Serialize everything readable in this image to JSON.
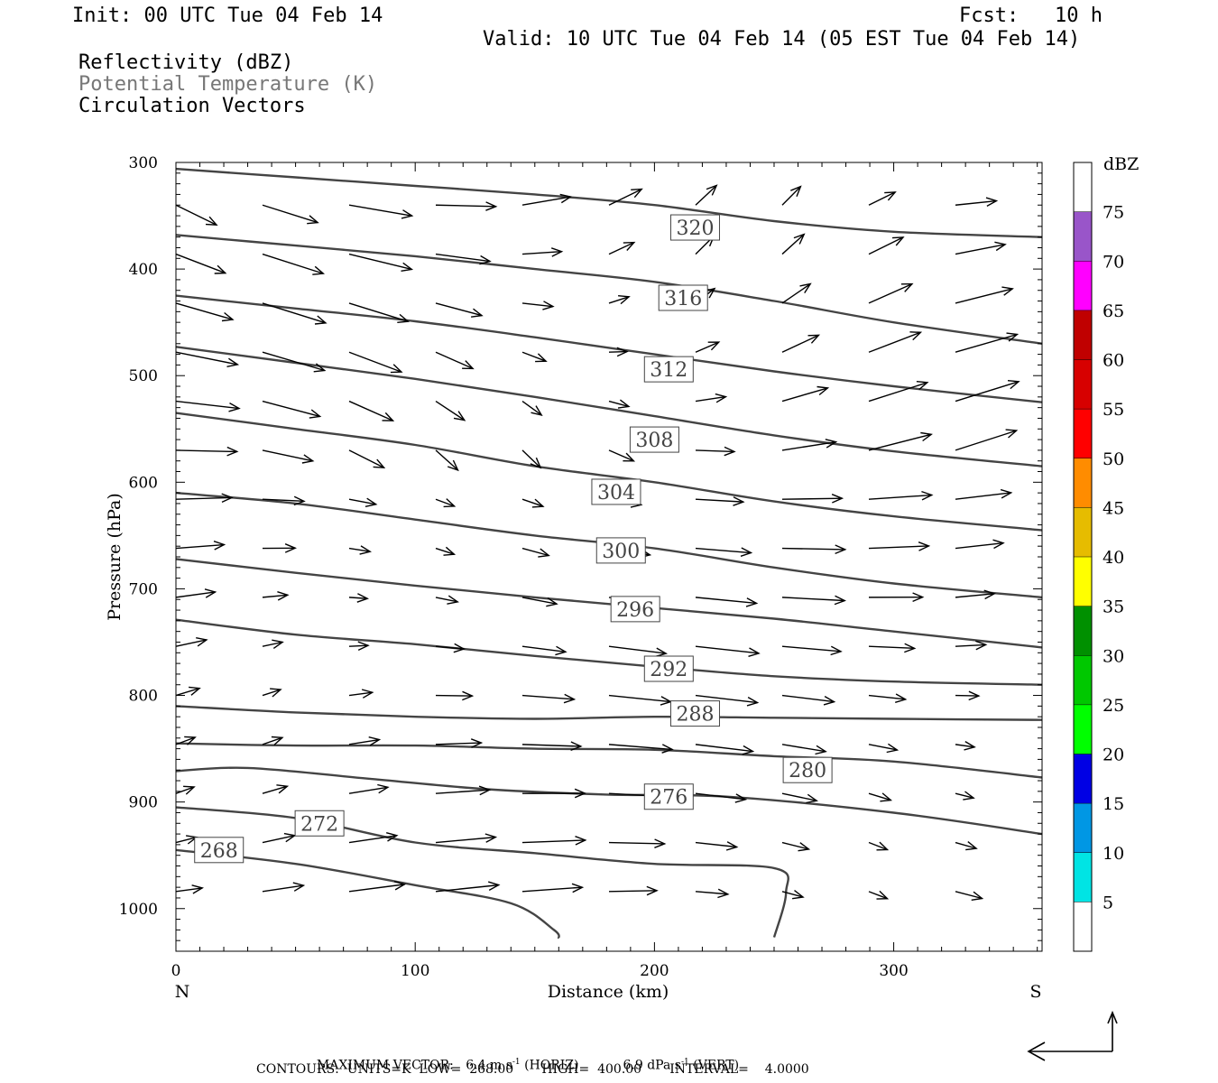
{
  "header": {
    "init": "Init: 00 UTC Tue 04 Feb 14",
    "fcst": "Fcst:   10 h",
    "valid": "Valid: 10 UTC Tue 04 Feb 14 (05 EST Tue 04 Feb 14)",
    "field1": "Reflectivity (dBZ)",
    "field2": "Potential Temperature (K)",
    "field3": "Circulation Vectors"
  },
  "colors": {
    "contour": "#444444",
    "axis": "#000000",
    "field2_text": "#777777"
  },
  "footer": {
    "vector_label": "MAXIMUM VECTOR:",
    "horiz_value": "6.4 m s",
    "horiz_exp": "-1",
    "horiz_tag": "(HORIZ)",
    "vert_value": "6.9 dPa s",
    "vert_exp": "-1",
    "vert_tag": "(VERT)",
    "contours_line": "CONTOURS:  UNITS=K  LOW=  268.00       HIGH=  400.00       INTERVAL=    4.0000"
  },
  "chart_data": {
    "type": "contour",
    "xlabel": "Distance (km)",
    "ylabel": "Pressure (hPa)",
    "xlim": [
      0,
      362
    ],
    "ylim": [
      1040,
      300
    ],
    "x_ticks": [
      0,
      100,
      200,
      300
    ],
    "y_ticks": [
      300,
      400,
      500,
      600,
      700,
      800,
      900,
      1000
    ],
    "x_end_labels": {
      "left": "N",
      "right": "S"
    },
    "colorbar": {
      "label": "dBZ",
      "levels": [
        5,
        10,
        15,
        20,
        25,
        30,
        35,
        40,
        45,
        50,
        55,
        60,
        65,
        70,
        75
      ],
      "colors": [
        "#ffffff",
        "#00e4e4",
        "#0097e4",
        "#0000e4",
        "#00ff00",
        "#00c800",
        "#009000",
        "#ffff00",
        "#e6bc00",
        "#ff8c00",
        "#ff0000",
        "#d70000",
        "#c00000",
        "#ff00ff",
        "#9955c9",
        "#ffffff"
      ]
    },
    "isentropes": [
      {
        "label": "320",
        "label_at": [
          217,
          361
        ],
        "points": [
          [
            0,
            306
          ],
          [
            50,
            314
          ],
          [
            100,
            322
          ],
          [
            150,
            330
          ],
          [
            200,
            340
          ],
          [
            250,
            355
          ],
          [
            300,
            365
          ],
          [
            362,
            370
          ]
        ]
      },
      {
        "label": "316",
        "label_at": [
          212,
          427
        ],
        "points": [
          [
            0,
            368
          ],
          [
            50,
            378
          ],
          [
            100,
            388
          ],
          [
            150,
            400
          ],
          [
            200,
            412
          ],
          [
            250,
            430
          ],
          [
            300,
            450
          ],
          [
            362,
            470
          ]
        ]
      },
      {
        "label": "312",
        "label_at": [
          206,
          494
        ],
        "points": [
          [
            0,
            425
          ],
          [
            50,
            437
          ],
          [
            100,
            449
          ],
          [
            150,
            464
          ],
          [
            200,
            480
          ],
          [
            250,
            496
          ],
          [
            300,
            510
          ],
          [
            362,
            525
          ]
        ]
      },
      {
        "label": "308",
        "label_at": [
          200,
          560
        ],
        "points": [
          [
            0,
            473
          ],
          [
            50,
            488
          ],
          [
            100,
            503
          ],
          [
            150,
            520
          ],
          [
            200,
            538
          ],
          [
            250,
            556
          ],
          [
            300,
            571
          ],
          [
            362,
            585
          ]
        ]
      },
      {
        "label": "304",
        "label_at": [
          184,
          609
        ],
        "points": [
          [
            0,
            535
          ],
          [
            50,
            550
          ],
          [
            100,
            565
          ],
          [
            150,
            585
          ],
          [
            200,
            600
          ],
          [
            250,
            618
          ],
          [
            300,
            632
          ],
          [
            362,
            645
          ]
        ]
      },
      {
        "label": "300",
        "label_at": [
          186,
          664
        ],
        "points": [
          [
            0,
            610
          ],
          [
            50,
            620
          ],
          [
            100,
            635
          ],
          [
            150,
            650
          ],
          [
            200,
            662
          ],
          [
            250,
            680
          ],
          [
            300,
            695
          ],
          [
            362,
            708
          ]
        ]
      },
      {
        "label": "296",
        "label_at": [
          192,
          719
        ],
        "points": [
          [
            0,
            672
          ],
          [
            50,
            685
          ],
          [
            100,
            697
          ],
          [
            150,
            708
          ],
          [
            200,
            718
          ],
          [
            250,
            728
          ],
          [
            300,
            740
          ],
          [
            362,
            755
          ]
        ]
      },
      {
        "label": "292",
        "label_at": [
          206,
          775
        ],
        "points": [
          [
            0,
            729
          ],
          [
            50,
            743
          ],
          [
            100,
            752
          ],
          [
            150,
            763
          ],
          [
            200,
            773
          ],
          [
            250,
            782
          ],
          [
            300,
            787
          ],
          [
            362,
            790
          ]
        ]
      },
      {
        "label": "288",
        "label_at": [
          217,
          817
        ],
        "points": [
          [
            0,
            810
          ],
          [
            50,
            816
          ],
          [
            100,
            820
          ],
          [
            150,
            822
          ],
          [
            200,
            820
          ],
          [
            250,
            821
          ],
          [
            300,
            822
          ],
          [
            362,
            823
          ]
        ]
      },
      {
        "label": "280",
        "label_at": [
          264,
          870
        ],
        "points": [
          [
            0,
            845
          ],
          [
            50,
            847
          ],
          [
            100,
            847
          ],
          [
            150,
            850
          ],
          [
            200,
            851
          ],
          [
            250,
            857
          ],
          [
            300,
            862
          ],
          [
            362,
            877
          ]
        ]
      },
      {
        "label": "276",
        "label_at": [
          206,
          895
        ],
        "points": [
          [
            0,
            871
          ],
          [
            30,
            868
          ],
          [
            80,
            878
          ],
          [
            130,
            888
          ],
          [
            180,
            893
          ],
          [
            230,
            895
          ],
          [
            300,
            910
          ],
          [
            362,
            930
          ]
        ]
      },
      {
        "label": "272",
        "label_at": [
          60,
          920
        ],
        "points": [
          [
            0,
            905
          ],
          [
            50,
            915
          ],
          [
            100,
            938
          ],
          [
            150,
            948
          ],
          [
            200,
            958
          ],
          [
            250,
            962
          ],
          [
            255,
            985
          ],
          [
            250,
            1027
          ]
        ]
      },
      {
        "label": "268",
        "label_at": [
          18,
          945
        ],
        "points": [
          [
            0,
            945
          ],
          [
            50,
            958
          ],
          [
            100,
            978
          ],
          [
            140,
            995
          ],
          [
            158,
            1020
          ],
          [
            160,
            1028
          ]
        ]
      }
    ],
    "vectors_note": "Circulation vectors plotted on a regular grid; arrow lengths proportional to wind (max 6.4 m/s horiz, 6.9 dPa/s vert)."
  }
}
